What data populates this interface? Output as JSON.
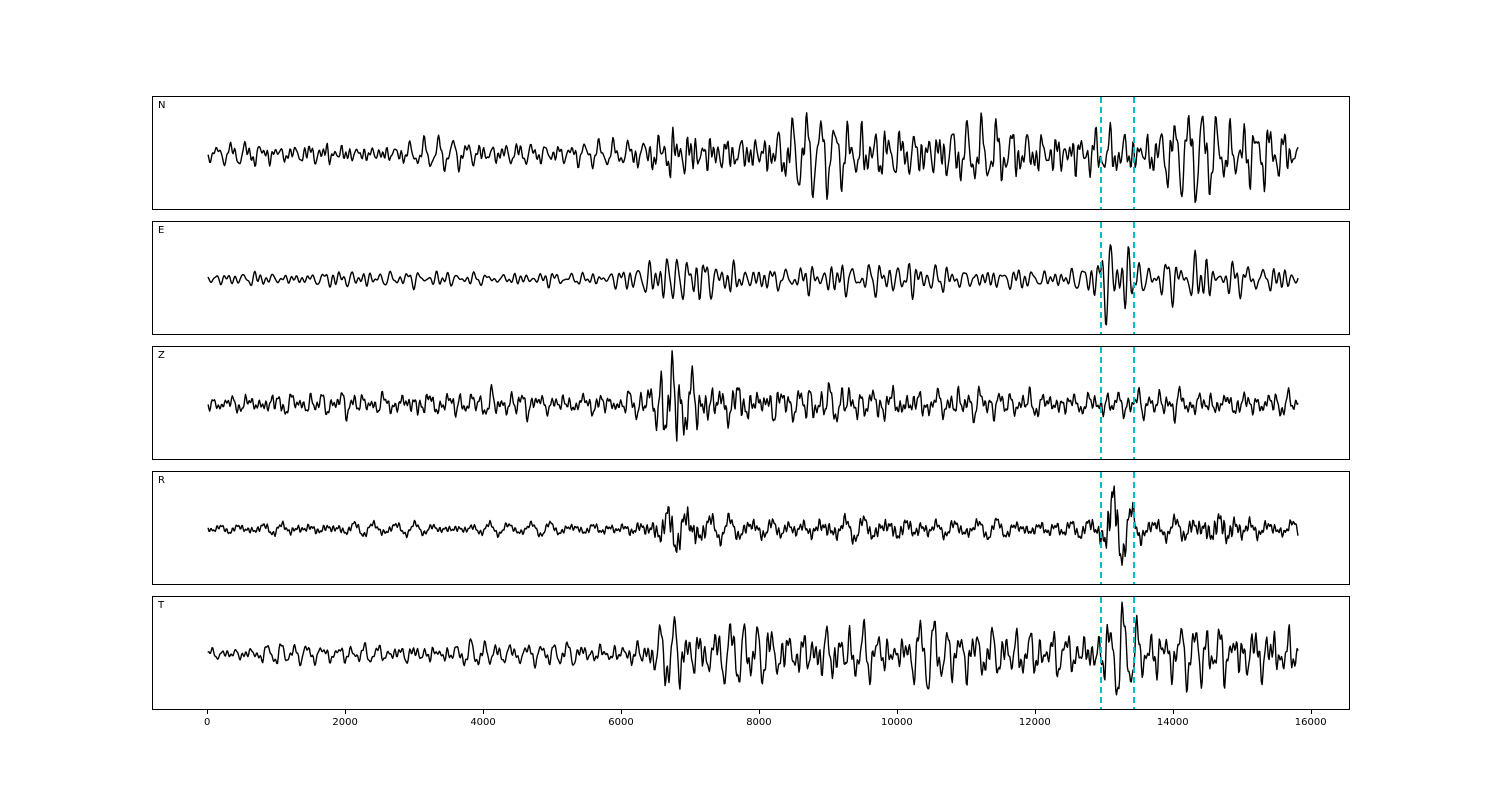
{
  "figure": {
    "background": "#ffffff"
  },
  "chart_data": {
    "type": "line",
    "title": "",
    "xlabel": "",
    "ylabel": "",
    "legend": null,
    "grid": false,
    "x_ticks": [
      0,
      2000,
      4000,
      6000,
      8000,
      10000,
      12000,
      14000,
      16000
    ],
    "xlim": [
      -800,
      16570
    ],
    "x_start": 0,
    "x_end": 15800,
    "line_color": "#000000",
    "marker_lines": {
      "x": [
        12950,
        13430
      ],
      "color": "#00bfbf",
      "style": "dashed"
    },
    "traces": [
      {
        "label": "N",
        "seed": 11,
        "envelope": [
          [
            0,
            6
          ],
          [
            300,
            10
          ],
          [
            700,
            14
          ],
          [
            1200,
            10
          ],
          [
            1700,
            16
          ],
          [
            2200,
            11
          ],
          [
            3000,
            12
          ],
          [
            4000,
            13
          ],
          [
            5000,
            11
          ],
          [
            6000,
            12
          ],
          [
            6400,
            20
          ],
          [
            6700,
            34
          ],
          [
            7100,
            30
          ],
          [
            7600,
            22
          ],
          [
            8000,
            26
          ],
          [
            8500,
            32
          ],
          [
            9000,
            28
          ],
          [
            9500,
            34
          ],
          [
            10000,
            26
          ],
          [
            10500,
            30
          ],
          [
            11000,
            28
          ],
          [
            11500,
            32
          ],
          [
            12000,
            26
          ],
          [
            12500,
            28
          ],
          [
            13000,
            30
          ],
          [
            13400,
            26
          ],
          [
            14000,
            30
          ],
          [
            14400,
            36
          ],
          [
            14800,
            30
          ],
          [
            15200,
            38
          ],
          [
            15600,
            28
          ],
          [
            15800,
            20
          ]
        ]
      },
      {
        "label": "E",
        "seed": 22,
        "envelope": [
          [
            0,
            5
          ],
          [
            1000,
            7
          ],
          [
            2000,
            8
          ],
          [
            3000,
            7
          ],
          [
            4000,
            6
          ],
          [
            5000,
            7
          ],
          [
            6000,
            8
          ],
          [
            6400,
            14
          ],
          [
            6700,
            30
          ],
          [
            7000,
            24
          ],
          [
            7400,
            14
          ],
          [
            8000,
            16
          ],
          [
            8500,
            12
          ],
          [
            9000,
            16
          ],
          [
            9500,
            14
          ],
          [
            10000,
            16
          ],
          [
            10500,
            12
          ],
          [
            11000,
            12
          ],
          [
            11500,
            10
          ],
          [
            12000,
            10
          ],
          [
            12500,
            12
          ],
          [
            12900,
            16
          ],
          [
            13100,
            46
          ],
          [
            13300,
            30
          ],
          [
            13600,
            14
          ],
          [
            14000,
            20
          ],
          [
            14300,
            24
          ],
          [
            14700,
            18
          ],
          [
            15000,
            20
          ],
          [
            15400,
            14
          ],
          [
            15800,
            12
          ]
        ]
      },
      {
        "label": "Z",
        "seed": 33,
        "envelope": [
          [
            0,
            7
          ],
          [
            500,
            10
          ],
          [
            1000,
            12
          ],
          [
            1500,
            10
          ],
          [
            2000,
            12
          ],
          [
            2500,
            10
          ],
          [
            3000,
            14
          ],
          [
            3500,
            12
          ],
          [
            4000,
            12
          ],
          [
            4500,
            13
          ],
          [
            5000,
            10
          ],
          [
            5500,
            12
          ],
          [
            6000,
            11
          ],
          [
            6300,
            14
          ],
          [
            6550,
            30
          ],
          [
            6750,
            48
          ],
          [
            7000,
            30
          ],
          [
            7300,
            20
          ],
          [
            7600,
            24
          ],
          [
            8000,
            18
          ],
          [
            8500,
            16
          ],
          [
            9000,
            18
          ],
          [
            9500,
            16
          ],
          [
            10000,
            18
          ],
          [
            10500,
            14
          ],
          [
            11000,
            16
          ],
          [
            11500,
            12
          ],
          [
            12000,
            14
          ],
          [
            12500,
            12
          ],
          [
            13000,
            13
          ],
          [
            13500,
            12
          ],
          [
            14000,
            14
          ],
          [
            14500,
            12
          ],
          [
            15000,
            13
          ],
          [
            15500,
            12
          ],
          [
            15800,
            11
          ]
        ]
      },
      {
        "label": "R",
        "seed": 44,
        "envelope": [
          [
            0,
            5
          ],
          [
            1000,
            7
          ],
          [
            2000,
            7
          ],
          [
            3000,
            6
          ],
          [
            4000,
            6
          ],
          [
            5000,
            6
          ],
          [
            6000,
            7
          ],
          [
            6400,
            12
          ],
          [
            6700,
            28
          ],
          [
            7000,
            22
          ],
          [
            7400,
            12
          ],
          [
            8000,
            12
          ],
          [
            8500,
            10
          ],
          [
            9000,
            14
          ],
          [
            9500,
            12
          ],
          [
            10000,
            14
          ],
          [
            10500,
            10
          ],
          [
            11000,
            10
          ],
          [
            11500,
            9
          ],
          [
            12000,
            9
          ],
          [
            12500,
            10
          ],
          [
            12900,
            14
          ],
          [
            13100,
            46
          ],
          [
            13300,
            26
          ],
          [
            13600,
            12
          ],
          [
            14000,
            12
          ],
          [
            14400,
            16
          ],
          [
            14700,
            24
          ],
          [
            15000,
            14
          ],
          [
            15400,
            10
          ],
          [
            15800,
            8
          ]
        ]
      },
      {
        "label": "T",
        "seed": 55,
        "envelope": [
          [
            0,
            6
          ],
          [
            500,
            8
          ],
          [
            1000,
            10
          ],
          [
            1500,
            9
          ],
          [
            2000,
            10
          ],
          [
            2500,
            9
          ],
          [
            3000,
            12
          ],
          [
            3500,
            11
          ],
          [
            4000,
            12
          ],
          [
            4500,
            10
          ],
          [
            5000,
            11
          ],
          [
            5500,
            12
          ],
          [
            6000,
            12
          ],
          [
            6400,
            20
          ],
          [
            6700,
            34
          ],
          [
            7000,
            30
          ],
          [
            7400,
            26
          ],
          [
            8000,
            30
          ],
          [
            8500,
            26
          ],
          [
            9000,
            32
          ],
          [
            9500,
            28
          ],
          [
            10000,
            24
          ],
          [
            10300,
            30
          ],
          [
            10700,
            26
          ],
          [
            11000,
            30
          ],
          [
            11500,
            26
          ],
          [
            12000,
            28
          ],
          [
            12500,
            24
          ],
          [
            12900,
            30
          ],
          [
            13100,
            44
          ],
          [
            13400,
            28
          ],
          [
            13800,
            32
          ],
          [
            14200,
            28
          ],
          [
            14600,
            34
          ],
          [
            15000,
            30
          ],
          [
            15400,
            36
          ],
          [
            15800,
            26
          ]
        ]
      }
    ]
  }
}
